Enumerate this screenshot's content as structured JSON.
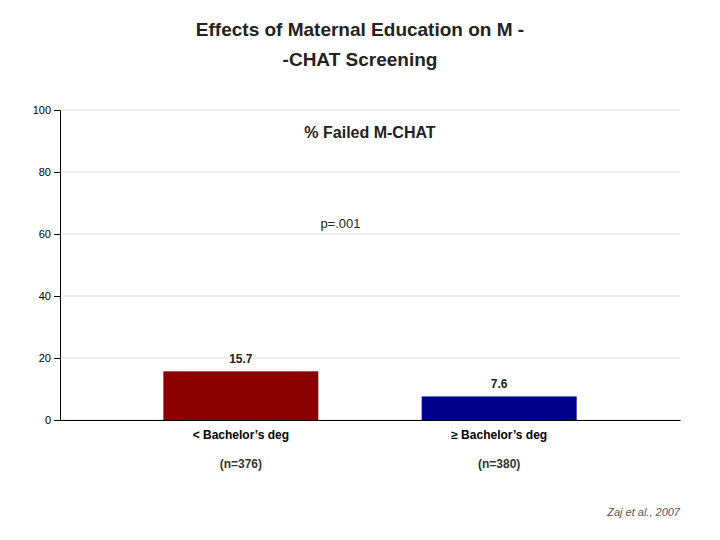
{
  "chart_data": {
    "type": "bar",
    "title": [
      "Effects of Maternal Education on M -",
      "-CHAT Screening"
    ],
    "annotations": [
      "% Failed M-CHAT",
      "p=.001"
    ],
    "categories": [
      "< Bachelor’s deg",
      "≥ Bachelor’s deg"
    ],
    "sample_labels": [
      "(n=376)",
      "(n=380)"
    ],
    "caption": "Zaj et al., 2007",
    "values": [
      15.7,
      7.6
    ],
    "colors": [
      "#8B0000",
      "#00008B"
    ],
    "data_labels": true,
    "ylim": [
      0,
      100
    ],
    "yticks": [
      0,
      20,
      40,
      60,
      80,
      100
    ],
    "grid": true
  }
}
